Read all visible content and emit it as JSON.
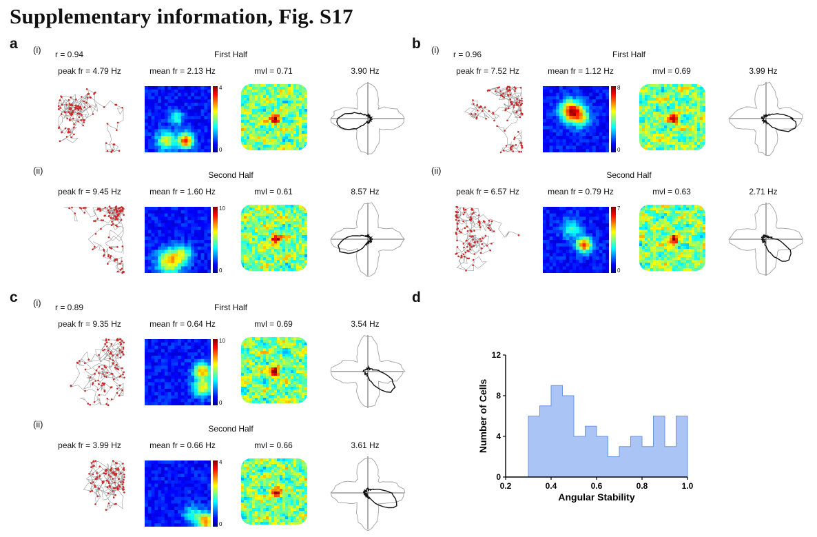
{
  "title": "Supplementary information, Fig. S17",
  "panels": {
    "a": {
      "label": "a",
      "rows": [
        {
          "roman": "(i)",
          "r": "r = 0.94",
          "half": "First Half",
          "peak": "peak fr = 4.79 Hz",
          "mean": "mean fr = 2.13 Hz",
          "mvl": "mvl = 0.71",
          "hz": "3.90 Hz",
          "cmin": "0",
          "cmax": "4"
        },
        {
          "roman": "(ii)",
          "r": "",
          "half": "Second Half",
          "peak": "peak fr = 9.45 Hz",
          "mean": "mean fr = 1.60 Hz",
          "mvl": "mvl = 0.61",
          "hz": "8.57 Hz",
          "cmin": "0",
          "cmax": "10"
        }
      ]
    },
    "b": {
      "label": "b",
      "rows": [
        {
          "roman": "(i)",
          "r": "r = 0.96",
          "half": "First Half",
          "peak": "peak fr = 7.52 Hz",
          "mean": "mean fr = 1.12 Hz",
          "mvl": "mvl = 0.69",
          "hz": "3.99 Hz",
          "cmin": "0",
          "cmax": "8"
        },
        {
          "roman": "(ii)",
          "r": "",
          "half": "Second Half",
          "peak": "peak fr = 6.57 Hz",
          "mean": "mean fr = 0.79 Hz",
          "mvl": "mvl = 0.63",
          "hz": "2.71 Hz",
          "cmin": "0",
          "cmax": "7"
        }
      ]
    },
    "c": {
      "label": "c",
      "rows": [
        {
          "roman": "(i)",
          "r": "r = 0.89",
          "half": "First Half",
          "peak": "peak fr = 9.35 Hz",
          "mean": "mean fr = 0.64 Hz",
          "mvl": "mvl = 0.69",
          "hz": "3.54 Hz",
          "cmin": "0",
          "cmax": "10"
        },
        {
          "roman": "(ii)",
          "r": "",
          "half": "Second Half",
          "peak": "peak fr = 3.99 Hz",
          "mean": "mean fr = 0.66 Hz",
          "mvl": "mvl = 0.66",
          "hz": "3.61 Hz",
          "cmin": "0",
          "cmax": "4"
        }
      ]
    },
    "d": {
      "label": "d"
    }
  },
  "chart_data": {
    "type": "bar",
    "title": "",
    "xlabel": "Angular Stability",
    "ylabel": "Number of Cells",
    "xlim": [
      0.2,
      1.0
    ],
    "ylim": [
      0,
      12
    ],
    "xticks": [
      "0.2",
      "0.4",
      "0.6",
      "0.8",
      "1.0"
    ],
    "yticks": [
      "0",
      "4",
      "8",
      "12"
    ],
    "bin_start": 0.3,
    "bin_width": 0.05,
    "values": [
      6,
      7,
      9,
      8,
      4,
      5,
      4,
      2,
      3,
      4,
      3,
      6,
      3,
      6
    ],
    "fill_color": "#a9c4f5",
    "edge_color": "#6a94e0",
    "grid": false
  }
}
